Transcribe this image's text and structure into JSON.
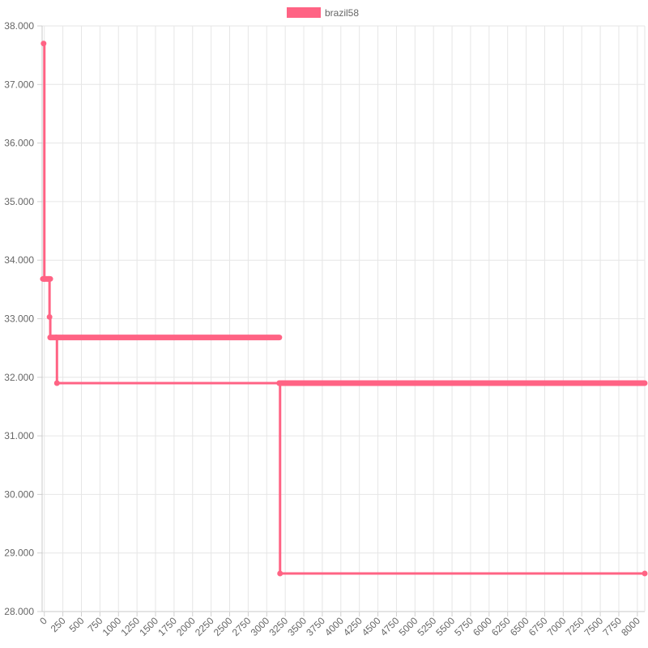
{
  "chart_data": {
    "type": "line",
    "title": "",
    "xlabel": "",
    "ylabel": "",
    "legend": {
      "position": "top",
      "entries": [
        "brazil58"
      ]
    },
    "grid": true,
    "xlim": [
      -30,
      8100
    ],
    "ylim": [
      28,
      38
    ],
    "x_ticks": [
      "0",
      "250",
      "500",
      "750",
      "1000",
      "1250",
      "1500",
      "1750",
      "2000",
      "2250",
      "2500",
      "2750",
      "3000",
      "3250",
      "3500",
      "3750",
      "4000",
      "4250",
      "4500",
      "4750",
      "5000",
      "5250",
      "5500",
      "5750",
      "6000",
      "6250",
      "6500",
      "6750",
      "7000",
      "7250",
      "7500",
      "7750",
      "8000"
    ],
    "y_ticks": [
      "28.000",
      "29.000",
      "30.000",
      "31.000",
      "32.000",
      "33.000",
      "34.000",
      "35.000",
      "36.000",
      "37.000",
      "38.000"
    ],
    "series": [
      {
        "name": "brazil58",
        "color": "#ff6384",
        "step": true,
        "points": [
          [
            -10,
            37.7
          ],
          [
            0,
            33.68
          ],
          [
            60,
            33.68
          ],
          [
            70,
            33.03
          ],
          [
            80,
            32.68
          ],
          [
            160,
            32.68
          ],
          [
            170,
            31.9
          ],
          [
            3170,
            31.9
          ],
          [
            3180,
            28.65
          ],
          [
            8100,
            28.65
          ]
        ],
        "marker_runs": [
          [
            -20,
            60
          ],
          [
            60,
            80
          ],
          [
            80,
            160
          ],
          [
            160,
            3170
          ],
          [
            3170,
            8100
          ]
        ]
      }
    ]
  }
}
